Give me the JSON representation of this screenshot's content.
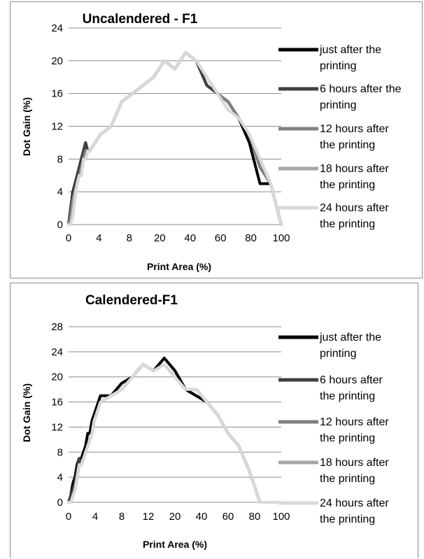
{
  "chart_data": [
    {
      "type": "line",
      "title": "Uncalendered - F1",
      "xlabel": "Print Area (%)",
      "ylabel": "Dot Gain (%)",
      "x_ticks": [
        "0",
        "4",
        "8",
        "20",
        "40",
        "60",
        "80",
        "100"
      ],
      "y_ticks": [
        "0",
        "4",
        "8",
        "12",
        "16",
        "20",
        "24"
      ],
      "ylim": [
        0,
        24
      ],
      "grid": "horizontal",
      "legend_position": "right",
      "x": [
        0,
        1,
        2,
        3,
        4,
        5,
        6,
        7,
        8,
        9,
        10,
        15,
        20,
        25,
        30,
        35,
        40,
        45,
        50,
        55,
        60,
        65,
        70,
        75,
        80,
        85,
        90,
        95,
        100
      ],
      "series": [
        {
          "name": "just after the printing",
          "color": "#000000",
          "values": [
            0,
            2,
            4,
            5,
            6,
            7,
            8,
            9,
            10,
            9,
            9,
            11,
            12,
            15,
            16,
            17,
            18,
            20,
            19,
            21,
            20,
            17,
            16,
            15,
            13,
            10,
            5,
            5,
            0
          ]
        },
        {
          "name": "6 hours after the printing",
          "color": "#404040",
          "values": [
            0,
            2,
            3.5,
            5,
            6,
            7,
            8,
            9,
            10,
            9,
            9,
            11,
            12,
            15,
            16,
            17,
            18,
            20,
            19,
            21,
            20,
            17,
            16,
            15,
            13,
            11,
            7,
            5,
            0
          ]
        },
        {
          "name": "12 hours after the printing",
          "color": "#808080",
          "values": [
            0,
            1,
            3,
            4,
            5,
            6,
            7,
            8,
            9,
            9,
            9,
            11,
            12,
            15,
            16,
            17,
            18,
            20,
            19,
            21,
            20,
            18,
            16,
            15,
            13,
            11,
            7,
            5,
            0
          ]
        },
        {
          "name": "18 hours after the printing",
          "color": "#a6a6a6",
          "values": [
            0,
            0,
            2,
            4,
            5,
            6,
            6,
            8,
            8,
            9,
            9,
            11,
            12,
            15,
            16,
            17,
            18,
            20,
            19,
            21,
            20,
            18,
            16,
            14,
            13,
            11,
            8,
            5,
            0
          ]
        },
        {
          "name": "24 hours after the printing",
          "color": "#d9d9d9",
          "values": [
            0,
            0,
            1,
            3,
            5,
            6,
            6,
            8,
            8,
            9,
            9,
            11,
            12,
            15,
            16,
            17,
            18,
            20,
            19,
            21,
            20,
            18,
            16,
            14,
            13,
            11,
            8,
            5,
            0
          ]
        }
      ]
    },
    {
      "type": "line",
      "title": "Calendered-F1",
      "xlabel": "Print Area (%)",
      "ylabel": "Dot Gain (%)",
      "x_ticks": [
        "0",
        "4",
        "8",
        "12",
        "20",
        "40",
        "60",
        "80",
        "100"
      ],
      "y_ticks": [
        "0",
        "4",
        "8",
        "12",
        "16",
        "20",
        "24",
        "28"
      ],
      "ylim": [
        0,
        28
      ],
      "grid": "horizontal",
      "legend_position": "right",
      "x": [
        0,
        1,
        2,
        3,
        4,
        5,
        6,
        7,
        8,
        9,
        10,
        11,
        12,
        15,
        20,
        25,
        30,
        35,
        40,
        45,
        50,
        55,
        60,
        65,
        70,
        75,
        80,
        85,
        90,
        95,
        100
      ],
      "series": [
        {
          "name": "just after the printing",
          "color": "#000000",
          "values": [
            0,
            1,
            3,
            4,
            6,
            7,
            7,
            8,
            9,
            11,
            11,
            13,
            14,
            17,
            17,
            19,
            20,
            22,
            21,
            23,
            21,
            18,
            17,
            16,
            14,
            11,
            9,
            5,
            0,
            0,
            0
          ]
        },
        {
          "name": "6 hours after the printing",
          "color": "#404040",
          "values": [
            0,
            1,
            2,
            3,
            5,
            7,
            6,
            7,
            8,
            9,
            10,
            11,
            13,
            16,
            17,
            18,
            20,
            22,
            21,
            22,
            20,
            18,
            18,
            16,
            14,
            11,
            9,
            5,
            0,
            0,
            0
          ]
        },
        {
          "name": "12 hours after the printing",
          "color": "#808080",
          "values": [
            0,
            0,
            1,
            2,
            4,
            6,
            6,
            7,
            8,
            9,
            10,
            11,
            13,
            16,
            17,
            18,
            20,
            22,
            21,
            22,
            20,
            18,
            18,
            16,
            14,
            11,
            9,
            5,
            0,
            0,
            0
          ]
        },
        {
          "name": "18 hours after the printing",
          "color": "#a6a6a6",
          "values": [
            0,
            0,
            1,
            2,
            4,
            6,
            6,
            7,
            8,
            9,
            10,
            11,
            13,
            16,
            17,
            18,
            20,
            22,
            21,
            22,
            20,
            18,
            18,
            16,
            14,
            11,
            9,
            5,
            0,
            0,
            0
          ]
        },
        {
          "name": "24 hours after the printing",
          "color": "#d9d9d9",
          "values": [
            0,
            0,
            1,
            2,
            4,
            6,
            6,
            7,
            8,
            9,
            10,
            11,
            13,
            16,
            17,
            18,
            20,
            22,
            21,
            22,
            20,
            18,
            18,
            16,
            14,
            11,
            9,
            5,
            0,
            0,
            0
          ]
        }
      ]
    }
  ]
}
